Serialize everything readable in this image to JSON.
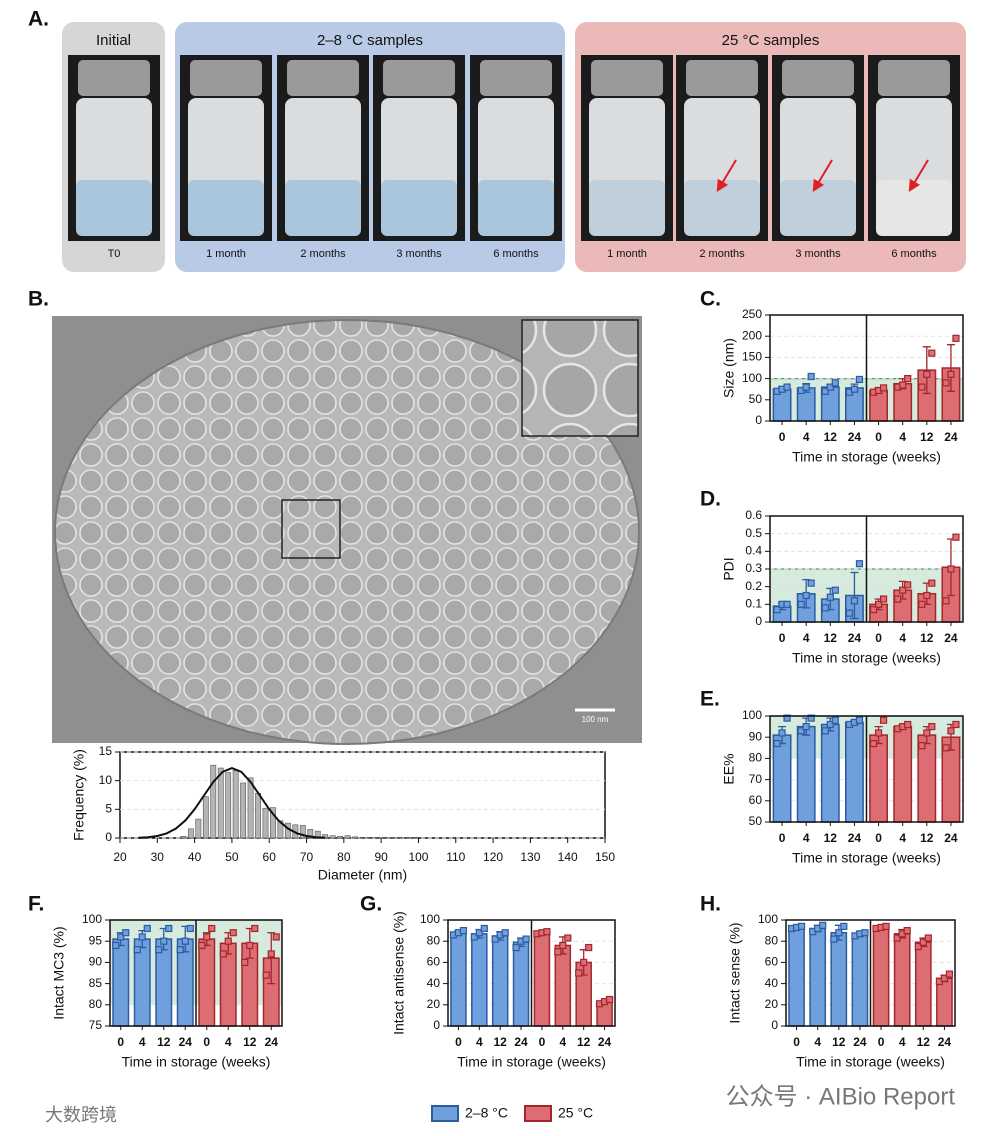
{
  "panel_a": {
    "label": "A.",
    "groups": [
      {
        "title": "Initial",
        "samples": [
          "T0"
        ]
      },
      {
        "title": "2–8 °C samples",
        "samples": [
          "1 month",
          "2 months",
          "3 months",
          "6 months"
        ]
      },
      {
        "title": "25 °C samples",
        "samples": [
          "1 month",
          "2 months",
          "3 months",
          "6 months"
        ]
      }
    ]
  },
  "panel_b": {
    "label": "B.",
    "scale_bar": "100 nm"
  },
  "chart_data": [
    {
      "type": "histogram",
      "x_label": "Diameter (nm)",
      "y_label": "Frequency (%)",
      "color": "#b4b4b4",
      "bins": [
        36,
        38,
        40,
        42,
        44,
        46,
        48,
        50,
        52,
        54,
        56,
        58,
        60,
        62,
        64,
        66,
        68,
        70,
        72,
        74,
        76,
        78,
        80,
        82,
        84,
        86,
        88,
        90,
        92,
        94,
        96,
        98,
        100
      ],
      "values": [
        0.3,
        1.6,
        3.3,
        7.2,
        12.7,
        12.2,
        11.4,
        11.8,
        9.6,
        10.5,
        7.8,
        5.2,
        5.3,
        3.0,
        2.6,
        2.3,
        2.2,
        1.5,
        1.2,
        0.6,
        0.4,
        0.3,
        0.4,
        0.2,
        0.1,
        0.1,
        0.1,
        0.1,
        0.1,
        0.1,
        0.1,
        0.1
      ],
      "xlim": [
        20,
        150
      ],
      "xticks": [
        20,
        30,
        40,
        50,
        60,
        70,
        80,
        90,
        100,
        110,
        120,
        130,
        140,
        150
      ],
      "ylim": [
        0,
        15
      ],
      "yticks": [
        0,
        5,
        10,
        15
      ],
      "fit": {
        "color": "#111111",
        "x": [
          25,
          27.5,
          30,
          32.5,
          35,
          37.5,
          40,
          42.5,
          45,
          47.5,
          50,
          52.5,
          55,
          57.5,
          60,
          62.5,
          65,
          67.5,
          70,
          72.5,
          75
        ],
        "values": [
          0.05,
          0.14,
          0.35,
          0.8,
          1.65,
          3.04,
          5.01,
          7.4,
          9.77,
          11.54,
          12.2,
          11.54,
          9.77,
          7.4,
          5.01,
          3.04,
          1.65,
          0.8,
          0.35,
          0.14,
          0.05
        ]
      }
    },
    {
      "type": "bar",
      "label": "C.",
      "y_label": "Size (nm)",
      "x_label": "Time in storage (weeks)",
      "categories": [
        "0",
        "4",
        "12",
        "24"
      ],
      "ylim": [
        0,
        250
      ],
      "yticks": [
        0,
        50,
        100,
        150,
        200,
        250
      ],
      "spec_range": [
        0,
        100
      ],
      "series": [
        {
          "color": "#6f9fdc",
          "edge_color": "#2c5c9e",
          "values": [
            75,
            78,
            80,
            78
          ],
          "errors": [
            5,
            10,
            6,
            9
          ],
          "points": [
            [
              70,
              75,
              80
            ],
            [
              72,
              80,
              105
            ],
            [
              70,
              80,
              90
            ],
            [
              68,
              75,
              98
            ]
          ]
        },
        {
          "color": "#dc6d72",
          "edge_color": "#a4262c",
          "values": [
            72,
            88,
            120,
            125
          ],
          "errors": [
            6,
            12,
            55,
            55
          ],
          "points": [
            [
              68,
              72,
              78
            ],
            [
              80,
              85,
              100
            ],
            [
              80,
              110,
              160
            ],
            [
              90,
              110,
              195
            ]
          ]
        }
      ]
    },
    {
      "type": "bar",
      "label": "D.",
      "y_label": "PDI",
      "x_label": "Time in storage (weeks)",
      "categories": [
        "0",
        "4",
        "12",
        "24"
      ],
      "ylim": [
        0,
        0.6
      ],
      "yticks": [
        0,
        0.1,
        0.2,
        0.3,
        0.4,
        0.5,
        0.6
      ],
      "spec_range": [
        0,
        0.3
      ],
      "series": [
        {
          "color": "#6f9fdc",
          "edge_color": "#2c5c9e",
          "values": [
            0.09,
            0.16,
            0.13,
            0.15
          ],
          "errors": [
            0.02,
            0.08,
            0.06,
            0.13
          ],
          "points": [
            [
              0.07,
              0.1,
              0.1
            ],
            [
              0.1,
              0.15,
              0.22
            ],
            [
              0.08,
              0.14,
              0.18
            ],
            [
              0.05,
              0.12,
              0.33
            ]
          ]
        },
        {
          "color": "#dc6d72",
          "edge_color": "#a4262c",
          "values": [
            0.1,
            0.18,
            0.16,
            0.31
          ],
          "errors": [
            0.03,
            0.05,
            0.06,
            0.16
          ],
          "points": [
            [
              0.07,
              0.1,
              0.13
            ],
            [
              0.13,
              0.18,
              0.21
            ],
            [
              0.1,
              0.15,
              0.22
            ],
            [
              0.12,
              0.3,
              0.48
            ]
          ]
        }
      ]
    },
    {
      "type": "bar",
      "label": "E.",
      "y_label": "EE%",
      "x_label": "Time in storage (weeks)",
      "categories": [
        "0",
        "4",
        "12",
        "24"
      ],
      "ylim": [
        50,
        100
      ],
      "yticks": [
        50,
        60,
        70,
        80,
        90,
        100
      ],
      "spec_range": [
        80,
        100
      ],
      "series": [
        {
          "color": "#6f9fdc",
          "edge_color": "#2c5c9e",
          "values": [
            91,
            95,
            96,
            97
          ],
          "errors": [
            4,
            4,
            3,
            1
          ],
          "points": [
            [
              87,
              92,
              99
            ],
            [
              93,
              95,
              99
            ],
            [
              93,
              96,
              98
            ],
            [
              96,
              97,
              98
            ]
          ]
        },
        {
          "color": "#dc6d72",
          "edge_color": "#a4262c",
          "values": [
            91,
            95,
            91,
            90
          ],
          "errors": [
            4,
            1,
            4,
            6
          ],
          "points": [
            [
              87,
              92,
              98
            ],
            [
              94,
              95,
              96
            ],
            [
              86,
              92,
              95
            ],
            [
              85,
              93,
              96
            ]
          ]
        }
      ]
    },
    {
      "type": "bar",
      "label": "F.",
      "y_label": "Intact MC3 (%)",
      "x_label": "Time in storage (weeks)",
      "categories": [
        "0",
        "4",
        "12",
        "24"
      ],
      "ylim": [
        75,
        100
      ],
      "yticks": [
        75,
        80,
        85,
        90,
        95,
        100
      ],
      "spec_range": [
        80,
        100
      ],
      "series": [
        {
          "color": "#6f9fdc",
          "edge_color": "#2c5c9e",
          "values": [
            95.5,
            95.5,
            95.5,
            95.5
          ],
          "errors": [
            1.5,
            2,
            2.5,
            3
          ],
          "points": [
            [
              94,
              96,
              97
            ],
            [
              93,
              96,
              98
            ],
            [
              93,
              95,
              98
            ],
            [
              93,
              95,
              98
            ]
          ]
        },
        {
          "color": "#dc6d72",
          "edge_color": "#a4262c",
          "values": [
            95.5,
            94.5,
            94.5,
            91
          ],
          "errors": [
            1.5,
            2.5,
            3.5,
            6
          ],
          "points": [
            [
              94,
              96,
              98
            ],
            [
              92,
              95,
              97
            ],
            [
              90,
              94,
              98
            ],
            [
              87,
              92,
              96
            ]
          ]
        }
      ]
    },
    {
      "type": "bar",
      "label": "G.",
      "y_label": "Intact antisense (%)",
      "x_label": "Time in storage (weeks)",
      "categories": [
        "0",
        "4",
        "12",
        "24"
      ],
      "ylim": [
        0,
        100
      ],
      "yticks": [
        0,
        20,
        40,
        60,
        80,
        100
      ],
      "series": [
        {
          "color": "#6f9fdc",
          "edge_color": "#2c5c9e",
          "values": [
            88,
            87,
            85,
            79
          ],
          "errors": [
            2,
            4,
            4,
            4
          ],
          "points": [
            [
              86,
              88,
              90
            ],
            [
              84,
              88,
              92
            ],
            [
              82,
              86,
              88
            ],
            [
              74,
              80,
              82
            ]
          ]
        },
        {
          "color": "#dc6d72",
          "edge_color": "#a4262c",
          "values": [
            88,
            76,
            60,
            23
          ],
          "errors": [
            1,
            8,
            12,
            1
          ],
          "points": [
            [
              87,
              88,
              89
            ],
            [
              70,
              76,
              83
            ],
            [
              50,
              60,
              74
            ],
            [
              21,
              23,
              25
            ]
          ]
        }
      ]
    },
    {
      "type": "bar",
      "label": "H.",
      "y_label": "Intact sense (%)",
      "x_label": "Time in storage (weeks)",
      "categories": [
        "0",
        "4",
        "12",
        "24"
      ],
      "ylim": [
        0,
        100
      ],
      "yticks": [
        0,
        20,
        40,
        60,
        80,
        100
      ],
      "series": [
        {
          "color": "#6f9fdc",
          "edge_color": "#2c5c9e",
          "values": [
            93,
            92,
            88,
            87
          ],
          "errors": [
            1,
            3,
            7,
            2
          ],
          "points": [
            [
              92,
              93,
              94
            ],
            [
              89,
              92,
              95
            ],
            [
              82,
              88,
              94
            ],
            [
              85,
              87,
              88
            ]
          ]
        },
        {
          "color": "#dc6d72",
          "edge_color": "#a4262c",
          "values": [
            93,
            87,
            79,
            45
          ],
          "errors": [
            1,
            4,
            4,
            3
          ],
          "points": [
            [
              92,
              93,
              94
            ],
            [
              83,
              87,
              90
            ],
            [
              75,
              79,
              83
            ],
            [
              42,
              45,
              49
            ]
          ]
        }
      ]
    }
  ],
  "legend": {
    "items": [
      {
        "name": "2–8 °C",
        "color": "#6f9fdc",
        "edge_color": "#2c5c9e"
      },
      {
        "name": "25 °C",
        "color": "#dc6d72",
        "edge_color": "#a4262c"
      }
    ]
  },
  "watermarks": [
    "公众号 · AIBio Report",
    "大数跨境"
  ]
}
